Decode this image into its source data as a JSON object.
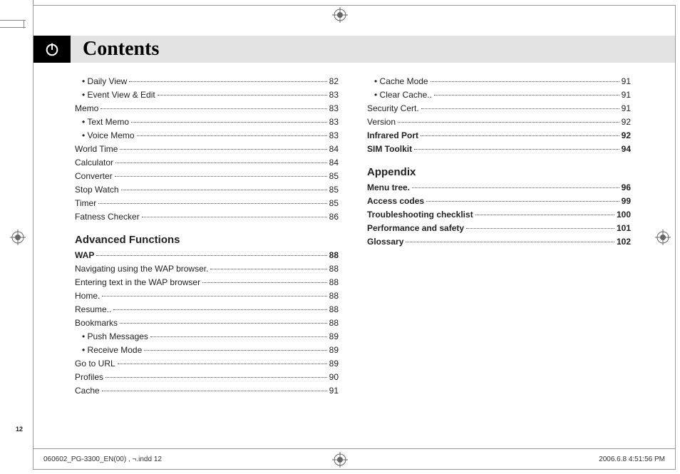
{
  "header": {
    "title": "Contents"
  },
  "col1": [
    {
      "type": "item",
      "label": "Daily View",
      "page": "82",
      "sub": true,
      "bullet": true
    },
    {
      "type": "item",
      "label": "Event View & Edit",
      "page": "83",
      "sub": true,
      "bullet": true
    },
    {
      "type": "item",
      "label": "Memo",
      "page": "83"
    },
    {
      "type": "item",
      "label": "Text Memo",
      "page": "83",
      "sub": true,
      "bullet": true
    },
    {
      "type": "item",
      "label": "Voice Memo",
      "page": "83",
      "sub": true,
      "bullet": true
    },
    {
      "type": "item",
      "label": "World Time",
      "page": "84"
    },
    {
      "type": "item",
      "label": "Calculator",
      "page": "84"
    },
    {
      "type": "item",
      "label": "Converter",
      "page": "85"
    },
    {
      "type": "item",
      "label": "Stop Watch",
      "page": "85"
    },
    {
      "type": "item",
      "label": "Timer",
      "page": "85"
    },
    {
      "type": "item",
      "label": "Fatness Checker",
      "page": "86"
    },
    {
      "type": "section",
      "label": "Advanced Functions"
    },
    {
      "type": "item",
      "label": "WAP",
      "page": "88",
      "bold": true
    },
    {
      "type": "item",
      "label": "Navigating using the WAP browser.",
      "page": "88"
    },
    {
      "type": "item",
      "label": "Entering text in the WAP browser",
      "page": "88"
    },
    {
      "type": "item",
      "label": "Home.",
      "page": "88"
    },
    {
      "type": "item",
      "label": "Resume..",
      "page": "88"
    },
    {
      "type": "item",
      "label": "Bookmarks",
      "page": "88"
    },
    {
      "type": "item",
      "label": "Push Messages",
      "page": "89",
      "sub": true,
      "bullet": true
    },
    {
      "type": "item",
      "label": "Receive Mode",
      "page": "89",
      "sub": true,
      "bullet": true
    },
    {
      "type": "item",
      "label": "Go to URL",
      "page": "89"
    },
    {
      "type": "item",
      "label": "Profiles",
      "page": "90"
    },
    {
      "type": "item",
      "label": "Cache",
      "page": "91"
    }
  ],
  "col2": [
    {
      "type": "item",
      "label": "Cache Mode",
      "page": "91",
      "sub": true,
      "bullet": true
    },
    {
      "type": "item",
      "label": "Clear Cache..",
      "page": "91",
      "sub": true,
      "bullet": true
    },
    {
      "type": "item",
      "label": "Security Cert.",
      "page": "91"
    },
    {
      "type": "item",
      "label": "Version",
      "page": "92"
    },
    {
      "type": "item",
      "label": "Infrared Port",
      "page": "92",
      "bold": true
    },
    {
      "type": "item",
      "label": "SIM Toolkit",
      "page": "94",
      "bold": true
    },
    {
      "type": "section",
      "label": "Appendix"
    },
    {
      "type": "item",
      "label": "Menu tree.",
      "page": "96",
      "bold": true
    },
    {
      "type": "item",
      "label": "Access codes",
      "page": "99",
      "bold": true
    },
    {
      "type": "item",
      "label": "Troubleshooting checklist",
      "page": "100",
      "bold": true
    },
    {
      "type": "item",
      "label": "Performance and safety",
      "page": "101",
      "bold": true
    },
    {
      "type": "item",
      "label": "Glossary",
      "page": "102",
      "bold": true
    }
  ],
  "pagenum": "12",
  "footer": {
    "left": "060602_PG-3300_EN(00) , ¬.indd   12",
    "right": "2006.6.8   4:51:56 PM"
  }
}
